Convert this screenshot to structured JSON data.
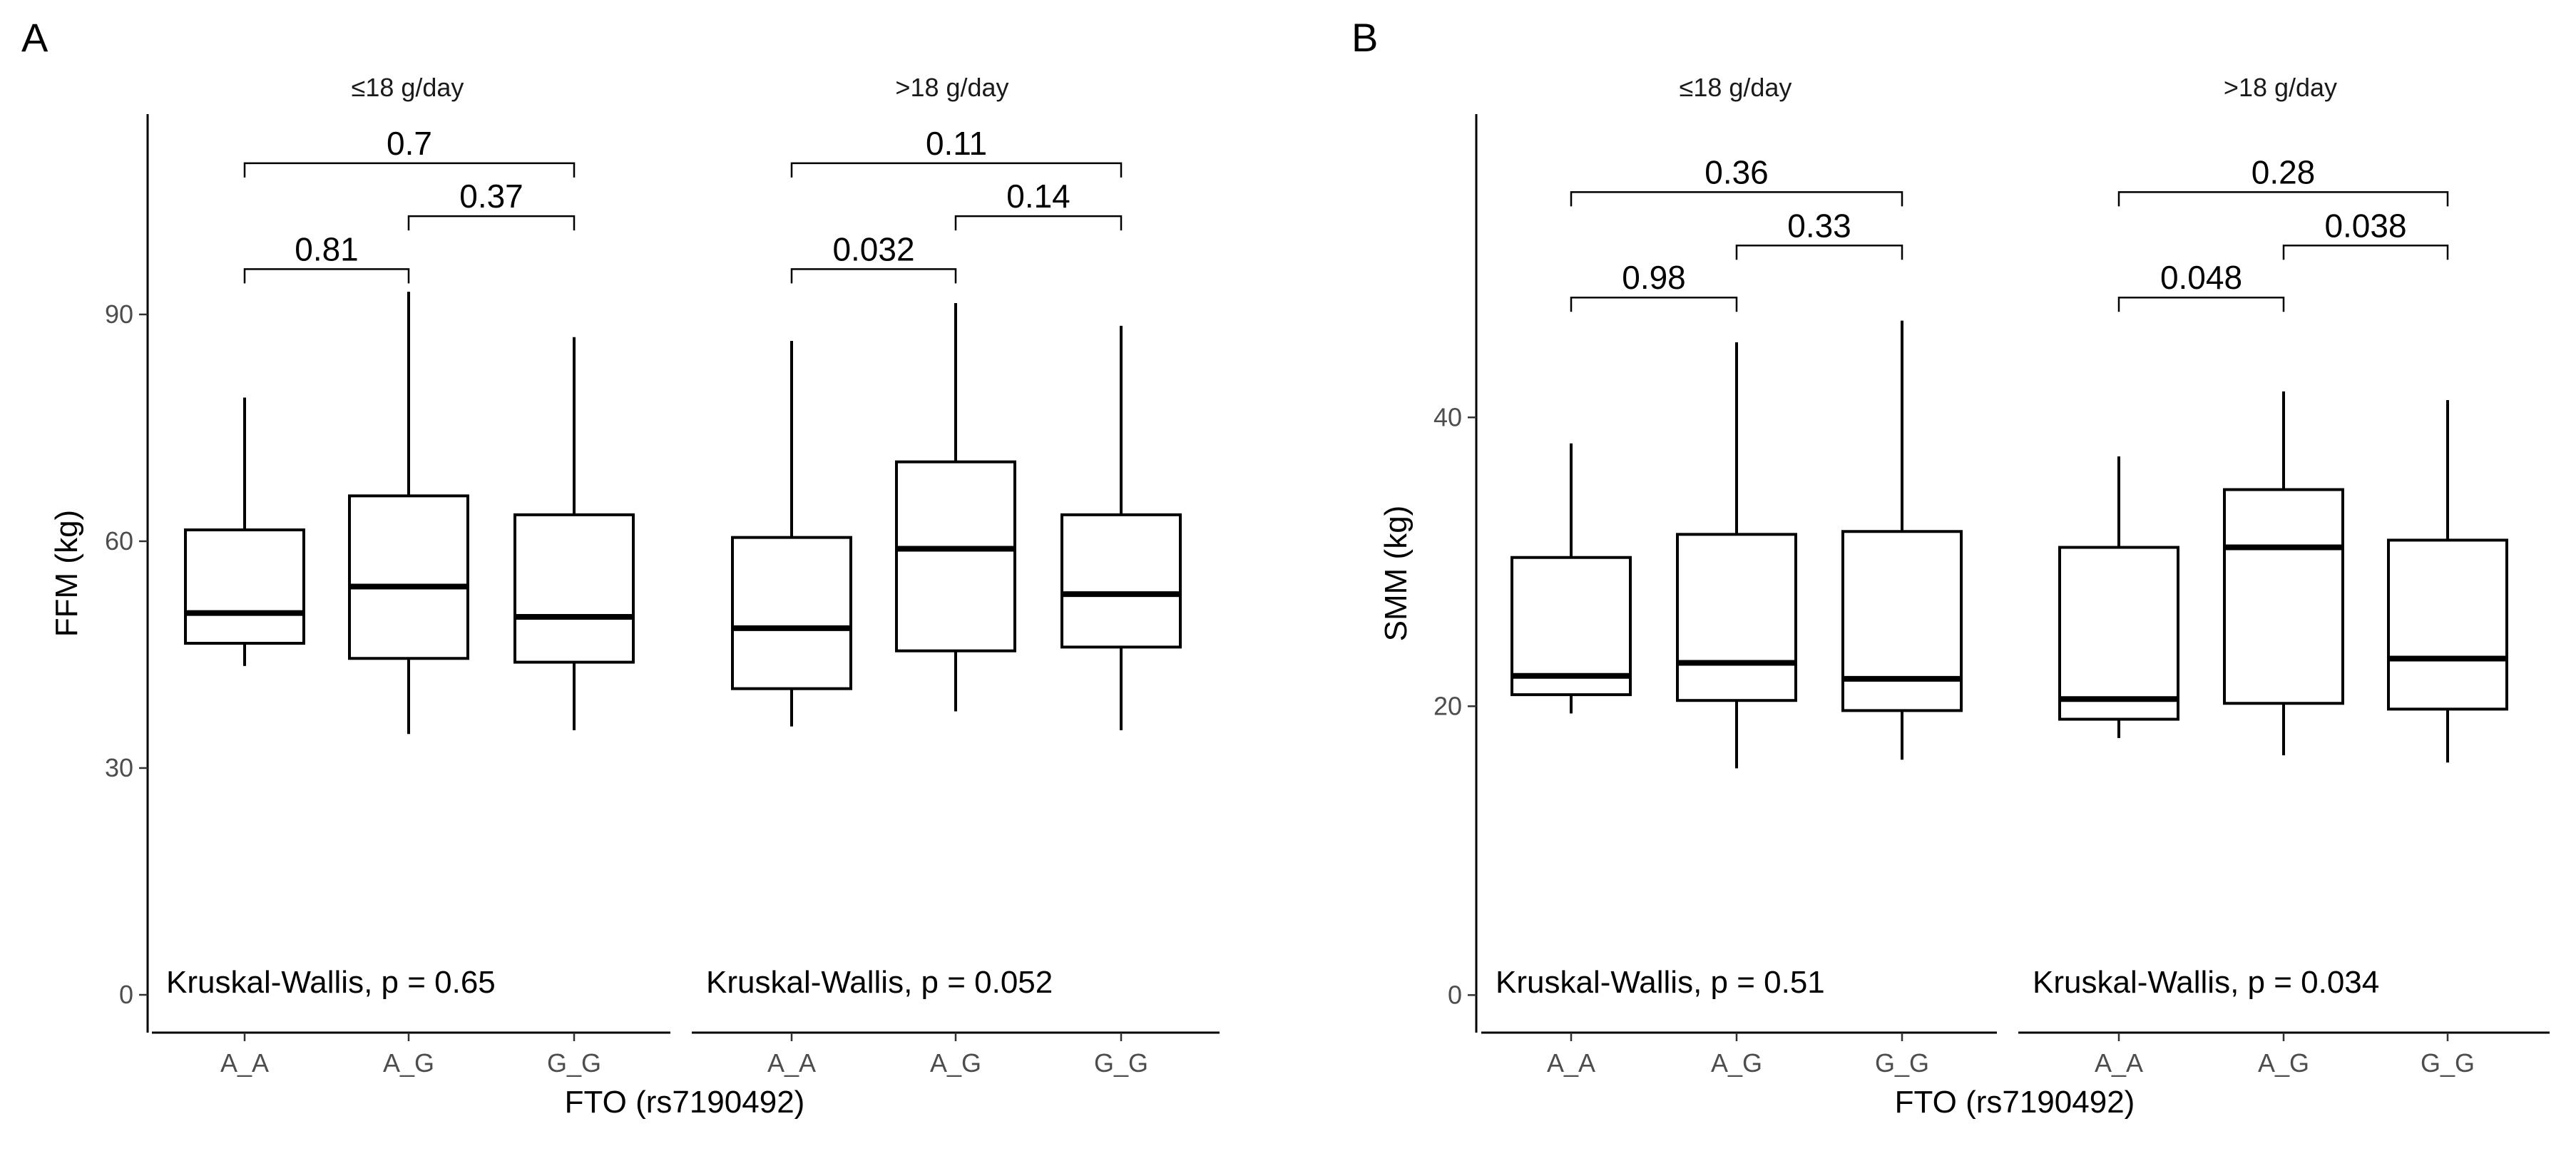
{
  "chart_data": [
    {
      "type": "box",
      "panel_letter": "A",
      "ylabel": "FFM (kg)",
      "xlabel": "FTO (rs7190492)",
      "ylim": [
        -5,
        116.5
      ],
      "yticks": [
        0,
        30,
        60,
        90
      ],
      "categories": [
        "A_A",
        "A_G",
        "G_G"
      ],
      "facets": [
        {
          "label": "≤18 g/day",
          "kruskal_label": "Kruskal-Wallis, p = 0.65",
          "boxes": [
            {
              "category": "A_A",
              "min": 43.5,
              "q1": 46.5,
              "median": 50.5,
              "q3": 61.5,
              "max": 79
            },
            {
              "category": "A_G",
              "min": 34.5,
              "q1": 44.5,
              "median": 54,
              "q3": 66,
              "max": 93
            },
            {
              "category": "G_G",
              "min": 35,
              "q1": 44,
              "median": 50,
              "q3": 63.5,
              "max": 87
            }
          ],
          "comparisons": [
            {
              "from": "A_A",
              "to": "A_G",
              "p": "0.81",
              "y": 96
            },
            {
              "from": "A_G",
              "to": "G_G",
              "p": "0.37",
              "y": 103
            },
            {
              "from": "A_A",
              "to": "G_G",
              "p": "0.7",
              "y": 110
            }
          ]
        },
        {
          "label": ">18 g/day",
          "kruskal_label": "Kruskal-Wallis, p = 0.052",
          "boxes": [
            {
              "category": "A_A",
              "min": 35.5,
              "q1": 40.5,
              "median": 48.5,
              "q3": 60.5,
              "max": 86.5
            },
            {
              "category": "A_G",
              "min": 37.5,
              "q1": 45.5,
              "median": 59,
              "q3": 70.5,
              "max": 91.5
            },
            {
              "category": "G_G",
              "min": 35,
              "q1": 46,
              "median": 53,
              "q3": 63.5,
              "max": 88.5
            }
          ],
          "comparisons": [
            {
              "from": "A_A",
              "to": "A_G",
              "p": "0.032",
              "y": 96
            },
            {
              "from": "A_G",
              "to": "G_G",
              "p": "0.14",
              "y": 103
            },
            {
              "from": "A_A",
              "to": "G_G",
              "p": "0.11",
              "y": 110
            }
          ]
        }
      ]
    },
    {
      "type": "box",
      "panel_letter": "B",
      "ylabel": "SMM (kg)",
      "xlabel": "FTO (rs7190492)",
      "ylim": [
        -2.6,
        61
      ],
      "yticks": [
        0,
        20,
        40
      ],
      "categories": [
        "A_A",
        "A_G",
        "G_G"
      ],
      "facets": [
        {
          "label": "≤18 g/day",
          "kruskal_label": "Kruskal-Wallis, p = 0.51",
          "boxes": [
            {
              "category": "A_A",
              "min": 19.5,
              "q1": 20.8,
              "median": 22.1,
              "q3": 30.3,
              "max": 38.2
            },
            {
              "category": "A_G",
              "min": 15.7,
              "q1": 20.4,
              "median": 23,
              "q3": 31.9,
              "max": 45.2
            },
            {
              "category": "G_G",
              "min": 16.3,
              "q1": 19.7,
              "median": 21.9,
              "q3": 32.1,
              "max": 46.7
            }
          ],
          "comparisons": [
            {
              "from": "A_A",
              "to": "A_G",
              "p": "0.98",
              "y": 48.3
            },
            {
              "from": "A_G",
              "to": "G_G",
              "p": "0.33",
              "y": 51.9
            },
            {
              "from": "A_A",
              "to": "G_G",
              "p": "0.36",
              "y": 55.6
            }
          ]
        },
        {
          "label": ">18 g/day",
          "kruskal_label": "Kruskal-Wallis, p = 0.034",
          "boxes": [
            {
              "category": "A_A",
              "min": 17.8,
              "q1": 19.1,
              "median": 20.5,
              "q3": 31,
              "max": 37.3
            },
            {
              "category": "A_G",
              "min": 16.6,
              "q1": 20.2,
              "median": 31,
              "q3": 35,
              "max": 41.8
            },
            {
              "category": "G_G",
              "min": 16.1,
              "q1": 19.8,
              "median": 23.3,
              "q3": 31.5,
              "max": 41.2
            }
          ],
          "comparisons": [
            {
              "from": "A_A",
              "to": "A_G",
              "p": "0.048",
              "y": 48.3
            },
            {
              "from": "A_G",
              "to": "G_G",
              "p": "0.038",
              "y": 51.9
            },
            {
              "from": "A_A",
              "to": "G_G",
              "p": "0.28",
              "y": 55.6
            }
          ]
        }
      ]
    }
  ]
}
